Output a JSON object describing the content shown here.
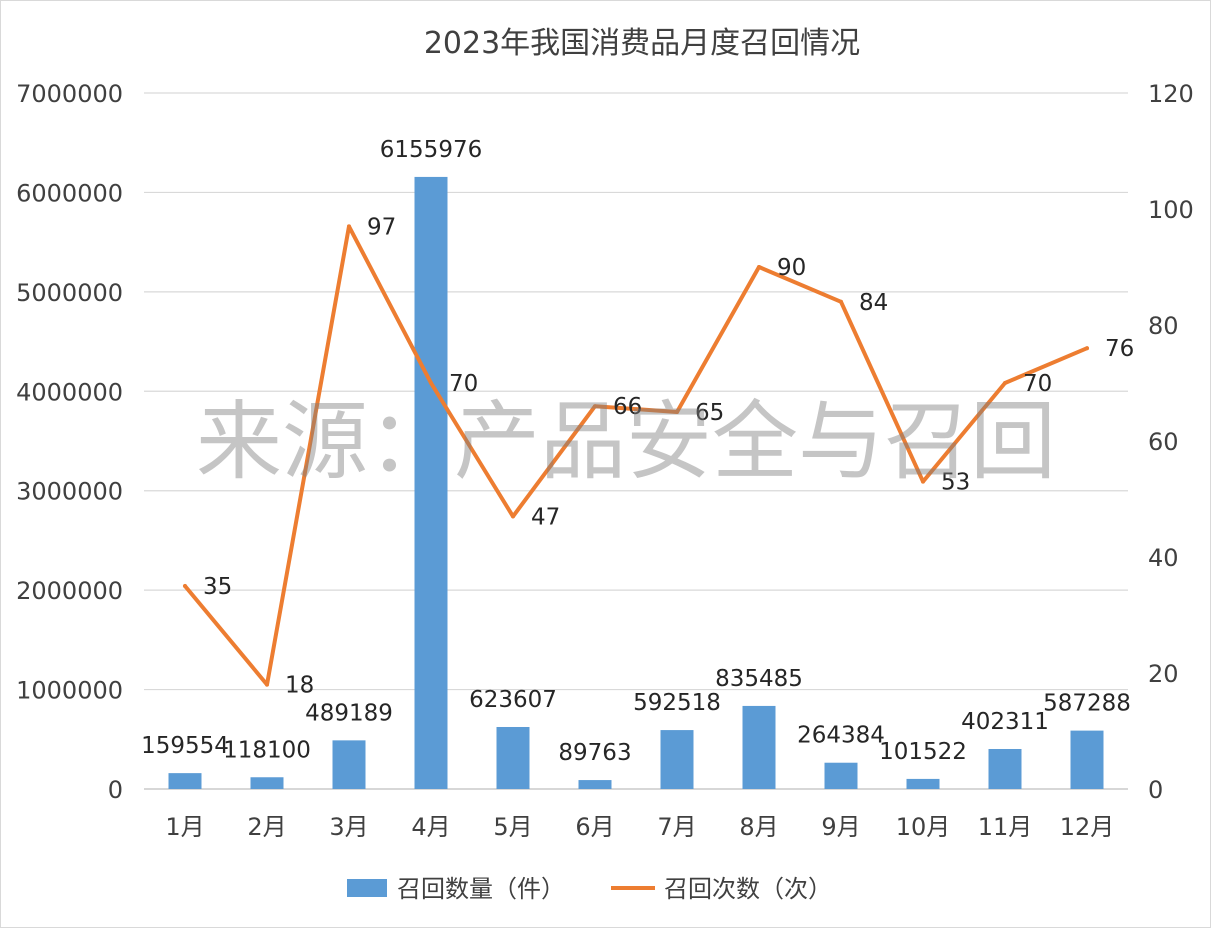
{
  "chart_data": {
    "type": "bar",
    "title": "2023年我国消费品月度召回情况",
    "categories": [
      "1月",
      "2月",
      "3月",
      "4月",
      "5月",
      "6月",
      "7月",
      "8月",
      "9月",
      "10月",
      "11月",
      "12月"
    ],
    "series": [
      {
        "name": "召回数量（件）",
        "type": "bar",
        "axis": "left",
        "color": "#5b9bd5",
        "values": [
          159554,
          118100,
          489189,
          6155976,
          623607,
          89763,
          592518,
          835485,
          264384,
          101522,
          402311,
          587288
        ]
      },
      {
        "name": "召回次数（次）",
        "type": "line",
        "axis": "right",
        "color": "#ed7d31",
        "values": [
          35,
          18,
          97,
          70,
          47,
          66,
          65,
          90,
          84,
          53,
          70,
          76
        ]
      }
    ],
    "y_left": {
      "min": 0,
      "max": 7000000,
      "step": 1000000
    },
    "y_right": {
      "min": 0,
      "max": 120,
      "step": 20
    },
    "grid": true,
    "legend_position": "bottom",
    "watermark": "来源：产品安全与召回"
  }
}
